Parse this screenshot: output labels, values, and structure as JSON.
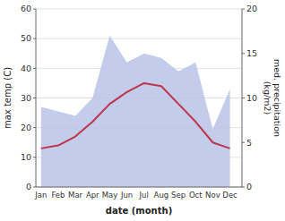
{
  "chart_data": {
    "type": "line",
    "categories": [
      "Jan",
      "Feb",
      "Mar",
      "Apr",
      "May",
      "Jun",
      "Jul",
      "Aug",
      "Sep",
      "Oct",
      "Nov",
      "Dec"
    ],
    "series": [
      {
        "type": "line",
        "color": "#c0344a",
        "values": [
          13,
          14,
          17,
          22,
          28,
          32,
          35,
          34,
          28,
          22,
          15,
          13
        ]
      },
      {
        "type": "area",
        "color": "#b8c4e8",
        "axis": "y2",
        "values": [
          9,
          8.5,
          8,
          10,
          17,
          14,
          15,
          14.5,
          13,
          14,
          6.5,
          11
        ]
      }
    ],
    "xlabel": "date (month)",
    "ylabel": "max temp (C)",
    "y2label": "med. precipitation\n(kg/m2)",
    "ylim": [
      0,
      60
    ],
    "yticks": [
      0,
      10,
      20,
      30,
      40,
      50,
      60
    ],
    "y2lim": [
      0,
      20
    ],
    "y2ticks": [
      0,
      5,
      10,
      15,
      20
    ],
    "grid": true
  }
}
